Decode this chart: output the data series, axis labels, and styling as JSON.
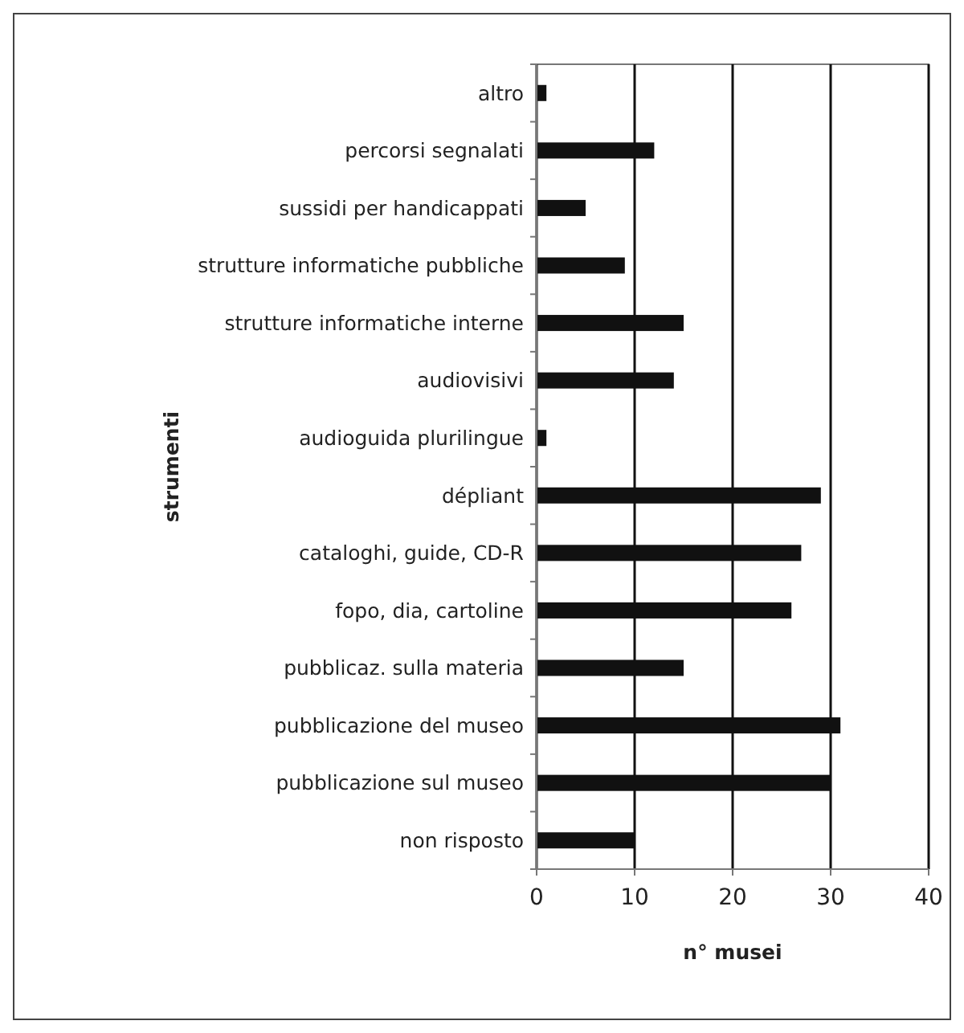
{
  "chart_data": {
    "type": "bar",
    "orientation": "horizontal",
    "xlabel": "n° musei",
    "ylabel": "strumenti",
    "categories": [
      "altro",
      "percorsi segnalati",
      "sussidi per handicappati",
      "strutture informatiche pubbliche",
      "strutture informatiche interne",
      "audiovisivi",
      "audioguida plurilingue",
      "dépliant",
      "cataloghi, guide, CD-R",
      "fopo, dia, cartoline",
      "pubblicaz. sulla materia",
      "pubblicazione del museo",
      "pubblicazione sul museo",
      "non risposto"
    ],
    "values": [
      1,
      12,
      5,
      9,
      15,
      14,
      1,
      29,
      27,
      26,
      15,
      31,
      30,
      10
    ],
    "color": "#111111",
    "xlim": [
      0,
      40
    ],
    "xticks": [
      0,
      10,
      20,
      30,
      40
    ],
    "grid": "x"
  }
}
